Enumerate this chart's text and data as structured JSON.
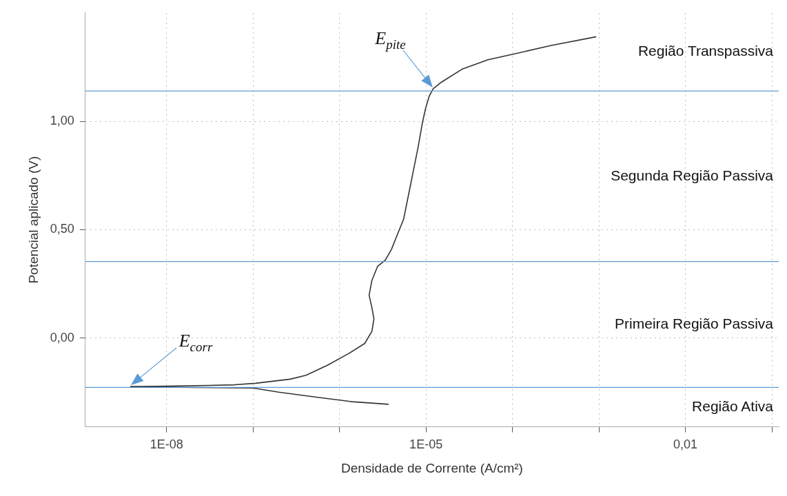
{
  "chart_data": {
    "type": "line",
    "xlabel": "Densidade de Corrente (A/cm²)",
    "ylabel": "Potencial aplicado (V)",
    "log": "x",
    "grid": true,
    "legend": false,
    "marker": "none",
    "line_style": "solid",
    "xlim": [
      1.15e-09,
      0.12
    ],
    "xticks": [
      {
        "value": 1e-08,
        "label": "1E-08"
      },
      {
        "value": 1e-07,
        "label": null
      },
      {
        "value": 1e-06,
        "label": null
      },
      {
        "value": 1e-05,
        "label": "1E-05"
      },
      {
        "value": 0.0001,
        "label": null
      },
      {
        "value": 0.001,
        "label": null
      },
      {
        "value": 0.01,
        "label": "0,01"
      },
      {
        "value": 0.1,
        "label": null
      }
    ],
    "ylim": [
      -0.41,
      1.5
    ],
    "yticks": [
      {
        "value": 0,
        "label": "0,00"
      },
      {
        "value": 0.5,
        "label": "0,50"
      },
      {
        "value": 1,
        "label": "1,00"
      }
    ],
    "series": [
      {
        "color": "#333333",
        "x": [
          3.8e-09,
          1e-08,
          2.95e-08,
          6.1e-08,
          1.07e-07,
          2.7e-07,
          4.1e-07,
          7.3e-07,
          1.3e-06,
          1.96e-06,
          2.37e-06,
          2.5e-06,
          2.37e-06,
          2.2e-06,
          2.37e-06,
          2.76e-06,
          3.4e-06,
          4e-06,
          4.55e-06,
          5.5e-06,
          6.6e-06,
          8.1e-06,
          9.1e-06,
          9.9e-06,
          1.09e-05,
          1.21e-05,
          1.5e-05,
          2.6e-05,
          5.2e-05,
          0.000103,
          0.00028,
          0.00093
        ],
        "values": [
          -0.225,
          -0.222,
          -0.219,
          -0.216,
          -0.209,
          -0.19,
          -0.172,
          -0.125,
          -0.07,
          -0.025,
          0.031,
          0.088,
          0.14,
          0.197,
          0.266,
          0.331,
          0.36,
          0.41,
          0.466,
          0.547,
          0.703,
          0.88,
          0.994,
          1.06,
          1.116,
          1.15,
          1.18,
          1.24,
          1.284,
          1.31,
          1.35,
          1.39
        ]
      },
      {
        "color": "#333333",
        "x": [
          3.8e-09,
          1e-07,
          1.98e-07,
          5.2e-07,
          1.4e-06,
          3.7e-06
        ],
        "values": [
          -0.225,
          -0.231,
          -0.25,
          -0.272,
          -0.294,
          -0.306
        ]
      }
    ],
    "ref_lines": [
      {
        "axis": "y",
        "value": 1.14,
        "color": "#5b9bd5"
      },
      {
        "axis": "y",
        "value": -0.228,
        "color": "#5b9bd5"
      },
      {
        "axis": "y",
        "value": 0.353,
        "color": "#5b9bd5"
      }
    ],
    "annotations": [
      "Região Transpassiva",
      "Segunda Região Passiva",
      "Primeira Região Passiva",
      "Região Ativa",
      "E$_{pite}$",
      "E$_{corr}$"
    ]
  }
}
